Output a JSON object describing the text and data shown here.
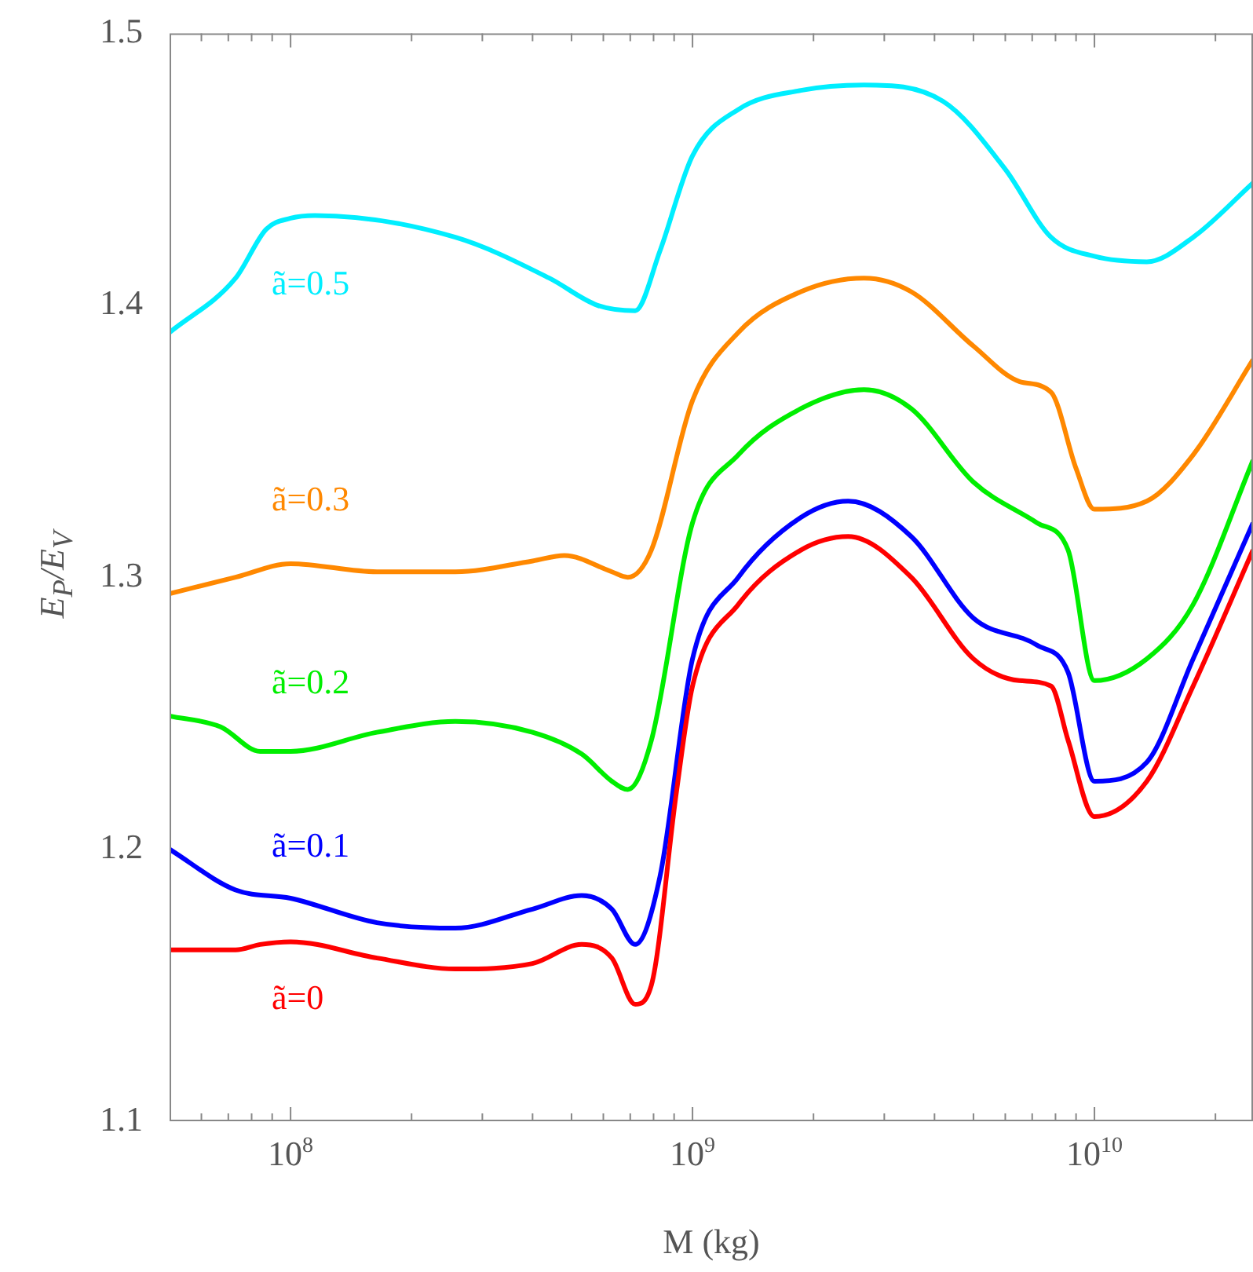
{
  "chart_data": {
    "type": "line",
    "xlabel": "M (kg)",
    "ylabel": "E$_{P}$/E$_{V}$",
    "log": "x",
    "grid": false,
    "marker": "none",
    "line_style": "solid",
    "xlim": [
      50000000.0,
      24800000000.0
    ],
    "xticks": [
      {
        "value": 60000000.0,
        "label": null
      },
      {
        "value": 70000000.0,
        "label": null
      },
      {
        "value": 80000000.0,
        "label": null
      },
      {
        "value": 90000000.0,
        "label": null
      },
      {
        "value": 100000000.0,
        "label": "10$^{8}$"
      },
      {
        "value": 200000000.0,
        "label": null
      },
      {
        "value": 300000000.0,
        "label": null
      },
      {
        "value": 400000000.0,
        "label": null
      },
      {
        "value": 500000000.0,
        "label": null
      },
      {
        "value": 600000000.0,
        "label": null
      },
      {
        "value": 700000000.0,
        "label": null
      },
      {
        "value": 800000000.0,
        "label": null
      },
      {
        "value": 900000000.0,
        "label": null
      },
      {
        "value": 1000000000.0,
        "label": "10$^{9}$"
      },
      {
        "value": 2000000000.0,
        "label": null
      },
      {
        "value": 3000000000.0,
        "label": null
      },
      {
        "value": 4000000000.0,
        "label": null
      },
      {
        "value": 5000000000.0,
        "label": null
      },
      {
        "value": 6000000000.0,
        "label": null
      },
      {
        "value": 7000000000.0,
        "label": null
      },
      {
        "value": 8000000000.0,
        "label": null
      },
      {
        "value": 9000000000.0,
        "label": null
      },
      {
        "value": 10000000000.0,
        "label": "10$^{10}$"
      },
      {
        "value": 20000000000.0,
        "label": null
      }
    ],
    "ylim": [
      1.1,
      1.5
    ],
    "yticks": [
      1.1,
      1.2,
      1.3,
      1.4,
      1.5
    ],
    "series": [
      {
        "name": "ã=0",
        "color": "#ff0000",
        "x": [
          50000000.0,
          73000000.0,
          84000000.0,
          100000000.0,
          164000000.0,
          257000000.0,
          400000000.0,
          530000000.0,
          630000000.0,
          720000000.0,
          790000000.0,
          910000000.0,
          1000000000.0,
          1300000000.0,
          1860000000.0,
          2440000000.0,
          3500000000.0,
          5000000000.0,
          6500000000.0,
          7800000000.0,
          8600000000.0,
          10000000000.0,
          13500000000.0,
          17600000000.0,
          24800000000.0
        ],
        "values": [
          1.163,
          1.163,
          1.165,
          1.166,
          1.16,
          1.156,
          1.158,
          1.165,
          1.16,
          1.143,
          1.15,
          1.22,
          1.26,
          1.29,
          1.31,
          1.315,
          1.3,
          1.27,
          1.262,
          1.26,
          1.24,
          1.212,
          1.225,
          1.26,
          1.31
        ]
      },
      {
        "name": "ã=0.1",
        "color": "#0000ff",
        "x": [
          50000000.0,
          73000000.0,
          100000000.0,
          164000000.0,
          257000000.0,
          400000000.0,
          530000000.0,
          630000000.0,
          720000000.0,
          830000000.0,
          1000000000.0,
          1300000000.0,
          1860000000.0,
          2440000000.0,
          3500000000.0,
          5000000000.0,
          7200000000.0,
          8600000000.0,
          10000000000.0,
          13500000000.0,
          17600000000.0,
          24800000000.0
        ],
        "values": [
          1.2,
          1.185,
          1.182,
          1.173,
          1.171,
          1.178,
          1.183,
          1.178,
          1.165,
          1.19,
          1.27,
          1.3,
          1.322,
          1.328,
          1.315,
          1.285,
          1.275,
          1.265,
          1.225,
          1.232,
          1.27,
          1.32
        ]
      },
      {
        "name": "ã=0.2",
        "color": "#00ee00",
        "x": [
          50000000.0,
          67000000.0,
          84000000.0,
          100000000.0,
          164000000.0,
          257000000.0,
          400000000.0,
          530000000.0,
          630000000.0,
          690000000.0,
          790000000.0,
          1000000000.0,
          1300000000.0,
          1860000000.0,
          2670000000.0,
          3500000000.0,
          5000000000.0,
          7200000000.0,
          8600000000.0,
          10000000000.0,
          13500000000.0,
          17600000000.0,
          24800000000.0
        ],
        "values": [
          1.249,
          1.245,
          1.236,
          1.236,
          1.243,
          1.247,
          1.243,
          1.235,
          1.225,
          1.222,
          1.24,
          1.32,
          1.345,
          1.362,
          1.369,
          1.362,
          1.335,
          1.32,
          1.31,
          1.262,
          1.27,
          1.29,
          1.343
        ]
      },
      {
        "name": "ã=0.3",
        "color": "#ff8800",
        "x": [
          50000000.0,
          73000000.0,
          100000000.0,
          164000000.0,
          257000000.0,
          400000000.0,
          480000000.0,
          630000000.0,
          690000000.0,
          790000000.0,
          1000000000.0,
          1300000000.0,
          1860000000.0,
          2670000000.0,
          3500000000.0,
          5000000000.0,
          6500000000.0,
          7800000000.0,
          9000000000.0,
          10000000000.0,
          13500000000.0,
          17600000000.0,
          24800000000.0
        ],
        "values": [
          1.294,
          1.3,
          1.305,
          1.302,
          1.302,
          1.306,
          1.308,
          1.302,
          1.3,
          1.31,
          1.365,
          1.39,
          1.405,
          1.41,
          1.405,
          1.385,
          1.372,
          1.368,
          1.34,
          1.325,
          1.328,
          1.345,
          1.38
        ]
      },
      {
        "name": "ã=0.5",
        "color": "#00eeff",
        "x": [
          50000000.0,
          73000000.0,
          87000000.0,
          100000000.0,
          115000000.0,
          257000000.0,
          440000000.0,
          580000000.0,
          720000000.0,
          830000000.0,
          1000000000.0,
          1300000000.0,
          1860000000.0,
          2670000000.0,
          4200000000.0,
          6000000000.0,
          7800000000.0,
          10000000000.0,
          13500000000.0,
          17600000000.0,
          24800000000.0
        ],
        "values": [
          1.39,
          1.41,
          1.428,
          1.432,
          1.433,
          1.425,
          1.41,
          1.4,
          1.398,
          1.42,
          1.455,
          1.472,
          1.479,
          1.481,
          1.475,
          1.45,
          1.425,
          1.418,
          1.416,
          1.425,
          1.445
        ]
      }
    ]
  }
}
